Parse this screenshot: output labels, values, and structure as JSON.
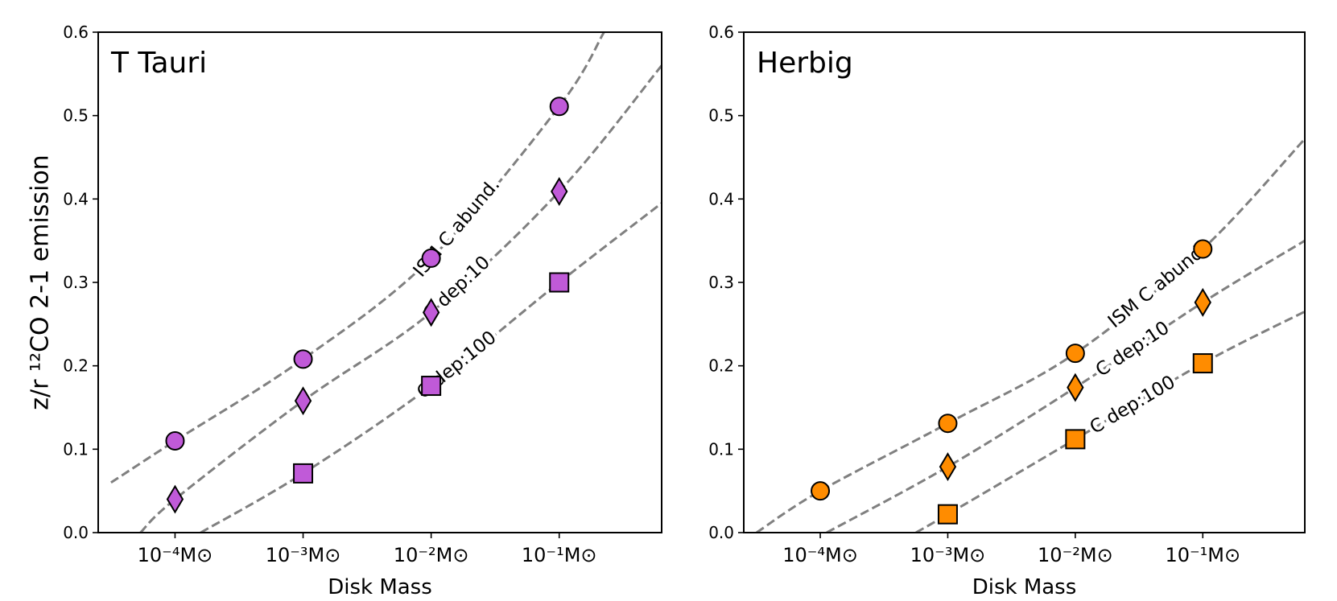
{
  "chart_data": [
    {
      "type": "scatter",
      "title": "T Tauri",
      "xlabel": "Disk Mass",
      "ylabel": "z/r ¹²CO 2-1 emission",
      "x_scale": "log",
      "xlim": [
        -4.6,
        -0.2
      ],
      "ylim": [
        0.0,
        0.6
      ],
      "yticks": [
        "0.0",
        "0.1",
        "0.2",
        "0.3",
        "0.4",
        "0.5",
        "0.6"
      ],
      "xtick_labels": [
        "10⁻⁴M⊙",
        "10⁻³M⊙",
        "10⁻²M⊙",
        "10⁻¹M⊙"
      ],
      "marker_color": "#c05ad8",
      "x": [
        -4,
        -3,
        -2,
        -1
      ],
      "series": [
        {
          "name": "ISM C abund.",
          "marker": "circle",
          "values": [
            0.11,
            0.208,
            0.329,
            0.511
          ],
          "label_at": -1.8
        },
        {
          "name": "C dep:10",
          "marker": "diamond",
          "values": [
            0.04,
            0.158,
            0.264,
            0.409
          ],
          "label_at": -1.8
        },
        {
          "name": "C dep:100",
          "marker": "square",
          "values": [
            null,
            0.071,
            0.176,
            0.3
          ],
          "label_at": -1.8
        }
      ],
      "curves": [
        {
          "name": "ISM C abund.",
          "x": [
            -4.5,
            -4,
            -3,
            -2,
            -1,
            -0.65
          ],
          "y": [
            0.06,
            0.11,
            0.208,
            0.329,
            0.511,
            0.6
          ]
        },
        {
          "name": "C dep:10",
          "x": [
            -4.27,
            -4,
            -3,
            -2,
            -1,
            -0.2
          ],
          "y": [
            0.0,
            0.04,
            0.158,
            0.264,
            0.409,
            0.56
          ]
        },
        {
          "name": "C dep:100",
          "x": [
            -3.8,
            -3,
            -2,
            -1,
            -0.2
          ],
          "y": [
            0.0,
            0.071,
            0.176,
            0.3,
            0.395
          ]
        }
      ]
    },
    {
      "type": "scatter",
      "title": "Herbig",
      "xlabel": "Disk Mass",
      "ylabel": "",
      "x_scale": "log",
      "xlim": [
        -4.6,
        -0.2
      ],
      "ylim": [
        0.0,
        0.6
      ],
      "yticks": [
        "0.0",
        "0.1",
        "0.2",
        "0.3",
        "0.4",
        "0.5",
        "0.6"
      ],
      "xtick_labels": [
        "10⁻⁴M⊙",
        "10⁻³M⊙",
        "10⁻²M⊙",
        "10⁻¹M⊙"
      ],
      "marker_color": "#ff8c00",
      "x": [
        -4,
        -3,
        -2,
        -1
      ],
      "series": [
        {
          "name": "ISM C abund.",
          "marker": "circle",
          "values": [
            0.05,
            0.131,
            0.215,
            0.34
          ],
          "label_at": -1.35
        },
        {
          "name": "C dep:10",
          "marker": "diamond",
          "values": [
            null,
            0.079,
            0.174,
            0.276
          ],
          "label_at": -1.55
        },
        {
          "name": "C dep:100",
          "marker": "square",
          "values": [
            null,
            0.022,
            0.112,
            0.203
          ],
          "label_at": -1.55
        }
      ],
      "curves": [
        {
          "name": "ISM C abund.",
          "x": [
            -4.5,
            -4,
            -3,
            -2,
            -1,
            -0.2
          ],
          "y": [
            0.0,
            0.05,
            0.131,
            0.215,
            0.34,
            0.472
          ]
        },
        {
          "name": "C dep:10",
          "x": [
            -3.95,
            -3,
            -2,
            -1,
            -0.2
          ],
          "y": [
            0.0,
            0.079,
            0.174,
            0.276,
            0.35
          ]
        },
        {
          "name": "C dep:100",
          "x": [
            -3.25,
            -3,
            -2,
            -1,
            -0.2
          ],
          "y": [
            0.0,
            0.022,
            0.112,
            0.203,
            0.265
          ]
        }
      ]
    }
  ]
}
